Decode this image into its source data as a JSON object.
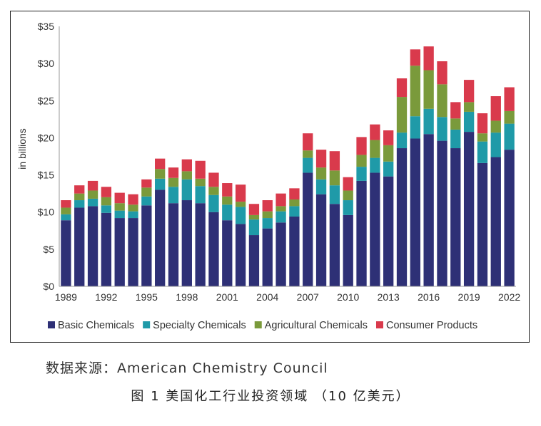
{
  "chart_data": {
    "type": "bar",
    "stacked": true,
    "ylabel": "in billions",
    "ylim": [
      0,
      35
    ],
    "y_ticks": [
      "$0",
      "$5",
      "$10",
      "$15",
      "$20",
      "$25",
      "$30",
      "$35"
    ],
    "x_tick_labels": [
      "1989",
      "1992",
      "1995",
      "1998",
      "2001",
      "2004",
      "2007",
      "2010",
      "2013",
      "2016",
      "2019",
      "2022"
    ],
    "categories": [
      1989,
      1990,
      1991,
      1992,
      1993,
      1994,
      1995,
      1996,
      1997,
      1998,
      1999,
      2000,
      2001,
      2002,
      2003,
      2004,
      2005,
      2006,
      2007,
      2008,
      2009,
      2010,
      2011,
      2012,
      2013,
      2014,
      2015,
      2016,
      2017,
      2018,
      2019,
      2020,
      2021,
      2022
    ],
    "series": [
      {
        "name": "Basic Chemicals",
        "color": "#2e3076",
        "values": [
          8.9,
          10.6,
          10.8,
          9.9,
          9.2,
          9.2,
          10.9,
          13.0,
          11.2,
          11.6,
          11.2,
          10.0,
          8.9,
          8.4,
          6.9,
          7.8,
          8.6,
          9.4,
          15.3,
          12.4,
          11.1,
          9.6,
          14.2,
          15.3,
          14.8,
          18.6,
          19.9,
          20.5,
          19.6,
          18.6,
          20.8,
          16.6,
          17.4,
          18.4
        ]
      },
      {
        "name": "Specialty Chemicals",
        "color": "#1f9aa8",
        "values": [
          0.8,
          1.0,
          1.0,
          1.0,
          1.0,
          0.9,
          1.2,
          1.5,
          2.2,
          2.8,
          2.3,
          2.3,
          2.1,
          2.3,
          2.1,
          1.4,
          1.5,
          1.4,
          2.0,
          2.0,
          2.5,
          2.0,
          1.9,
          2.0,
          2.0,
          2.1,
          3.0,
          3.4,
          3.2,
          2.5,
          2.7,
          2.9,
          3.3,
          3.5
        ]
      },
      {
        "name": "Agricultural Chemicals",
        "color": "#7a9a3b",
        "values": [
          0.9,
          0.9,
          1.1,
          1.1,
          1.0,
          0.9,
          1.2,
          1.3,
          1.2,
          1.1,
          1.0,
          1.1,
          1.1,
          0.7,
          0.6,
          0.9,
          0.7,
          0.9,
          1.0,
          1.6,
          2.0,
          1.3,
          1.6,
          2.4,
          2.2,
          4.8,
          6.8,
          5.2,
          4.4,
          1.5,
          1.3,
          1.1,
          1.6,
          1.7
        ]
      },
      {
        "name": "Consumer Products",
        "color": "#d93a4c",
        "values": [
          1.0,
          1.1,
          1.3,
          1.4,
          1.4,
          1.4,
          1.1,
          1.4,
          1.4,
          1.6,
          2.4,
          1.9,
          1.8,
          2.3,
          1.5,
          1.5,
          1.7,
          1.5,
          2.3,
          2.4,
          2.6,
          1.8,
          2.4,
          2.1,
          2.0,
          2.5,
          2.2,
          3.2,
          3.1,
          2.2,
          3.0,
          2.7,
          3.3,
          3.2
        ]
      }
    ],
    "legend_position": "bottom",
    "grid": false
  },
  "source_text": "数据来源：American Chemistry Council",
  "caption_text": "图 1  美国化工行业投资领域 （10 亿美元）"
}
